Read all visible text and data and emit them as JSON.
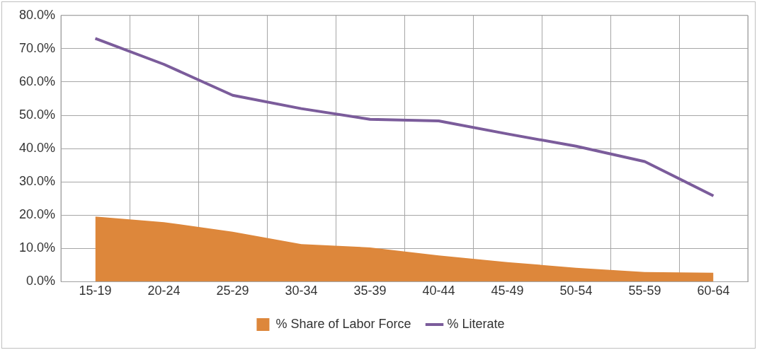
{
  "chart_data": {
    "type": "area",
    "categories": [
      "15-19",
      "20-24",
      "25-29",
      "30-34",
      "35-39",
      "40-44",
      "45-49",
      "50-54",
      "55-59",
      "60-64"
    ],
    "series": [
      {
        "name": "% Share of Labor Force",
        "type": "area",
        "color": "#dd873b",
        "values": [
          19.6,
          17.9,
          15.0,
          11.3,
          10.3,
          7.9,
          5.9,
          4.2,
          2.9,
          2.7
        ]
      },
      {
        "name": "% Literate",
        "type": "line",
        "color": "#7b5c9b",
        "values": [
          73.1,
          65.3,
          56.0,
          52.0,
          48.8,
          48.3,
          44.4,
          40.7,
          36.1,
          25.8
        ]
      }
    ],
    "ylim": [
      0,
      80
    ],
    "yticks": [
      {
        "value": 0,
        "label": "0.0%"
      },
      {
        "value": 10,
        "label": "10.0%"
      },
      {
        "value": 20,
        "label": "20.0%"
      },
      {
        "value": 30,
        "label": "30.0%"
      },
      {
        "value": 40,
        "label": "40.0%"
      },
      {
        "value": 50,
        "label": "50.0%"
      },
      {
        "value": 60,
        "label": "60.0%"
      },
      {
        "value": 70,
        "label": "70.0%"
      },
      {
        "value": 80,
        "label": "80.0%"
      }
    ],
    "grid": true,
    "legend": "bottom",
    "marker": "none"
  }
}
